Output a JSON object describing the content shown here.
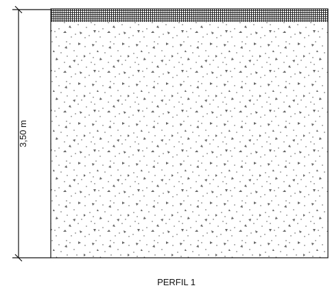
{
  "profile": {
    "height_label": "3,50 m",
    "caption": "PERFIL 1"
  }
}
